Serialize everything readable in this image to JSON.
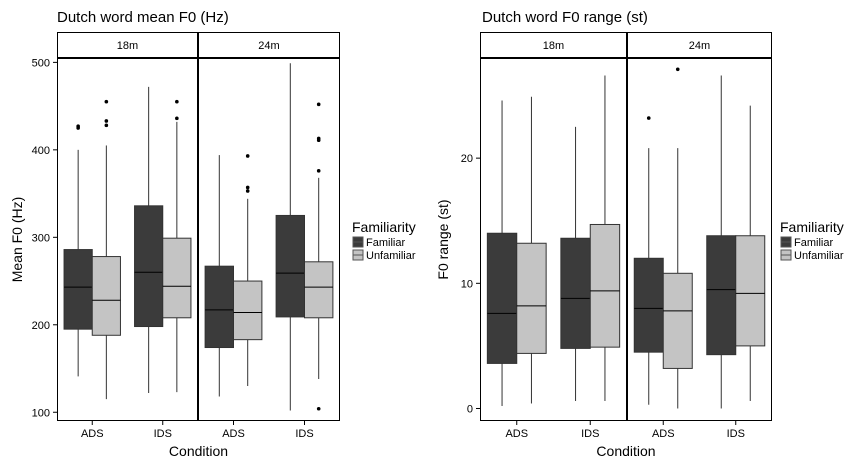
{
  "chart_data": [
    {
      "type": "boxplot",
      "title": "Dutch word mean F0 (Hz)",
      "xlabel": "Condition",
      "ylabel": "Mean F0 (Hz)",
      "ylim": [
        90,
        505
      ],
      "yticks": [
        100,
        200,
        300,
        400,
        500
      ],
      "facets": [
        "18m",
        "24m"
      ],
      "categories": [
        "ADS",
        "IDS"
      ],
      "legend": {
        "title": "Familiarity",
        "entries": [
          "Familiar",
          "Unfamiliar"
        ],
        "placement": "right"
      },
      "colors": {
        "Familiar": "#3b3b3b",
        "Unfamiliar": "#c4c4c4"
      },
      "grid": false,
      "boxes": [
        {
          "facet": "18m",
          "condition": "ADS",
          "group": "Familiar",
          "whisker_low": 141,
          "q1": 195,
          "median": 243,
          "q3": 286,
          "whisker_high": 400,
          "outliers": [
            425,
            427
          ]
        },
        {
          "facet": "18m",
          "condition": "ADS",
          "group": "Unfamiliar",
          "whisker_low": 115,
          "q1": 188,
          "median": 228,
          "q3": 278,
          "whisker_high": 405,
          "outliers": [
            428,
            433,
            455
          ]
        },
        {
          "facet": "18m",
          "condition": "IDS",
          "group": "Familiar",
          "whisker_low": 122,
          "q1": 198,
          "median": 260,
          "q3": 336,
          "whisker_high": 472,
          "outliers": []
        },
        {
          "facet": "18m",
          "condition": "IDS",
          "group": "Unfamiliar",
          "whisker_low": 123,
          "q1": 208,
          "median": 244,
          "q3": 299,
          "whisker_high": 432,
          "outliers": [
            436,
            455
          ]
        },
        {
          "facet": "24m",
          "condition": "ADS",
          "group": "Familiar",
          "whisker_low": 118,
          "q1": 174,
          "median": 217,
          "q3": 267,
          "whisker_high": 394,
          "outliers": []
        },
        {
          "facet": "24m",
          "condition": "ADS",
          "group": "Unfamiliar",
          "whisker_low": 130,
          "q1": 183,
          "median": 214,
          "q3": 250,
          "whisker_high": 344,
          "outliers": [
            353,
            357,
            393
          ]
        },
        {
          "facet": "24m",
          "condition": "IDS",
          "group": "Familiar",
          "whisker_low": 102,
          "q1": 209,
          "median": 259,
          "q3": 325,
          "whisker_high": 499,
          "outliers": []
        },
        {
          "facet": "24m",
          "condition": "IDS",
          "group": "Unfamiliar",
          "whisker_low": 138,
          "q1": 208,
          "median": 243,
          "q3": 272,
          "whisker_high": 368,
          "outliers": [
            104,
            376,
            411,
            413,
            452
          ]
        }
      ]
    },
    {
      "type": "boxplot",
      "title": "Dutch word F0 range (st)",
      "xlabel": "Condition",
      "ylabel": "F0 range (st)",
      "ylim": [
        -1,
        28
      ],
      "yticks": [
        0,
        10,
        20
      ],
      "facets": [
        "18m",
        "24m"
      ],
      "categories": [
        "ADS",
        "IDS"
      ],
      "legend": {
        "title": "Familiarity",
        "entries": [
          "Familiar",
          "Unfamiliar"
        ],
        "placement": "right"
      },
      "colors": {
        "Familiar": "#3b3b3b",
        "Unfamiliar": "#c4c4c4"
      },
      "grid": false,
      "boxes": [
        {
          "facet": "18m",
          "condition": "ADS",
          "group": "Familiar",
          "whisker_low": 0.2,
          "q1": 3.6,
          "median": 7.6,
          "q3": 14.0,
          "whisker_high": 24.6,
          "outliers": []
        },
        {
          "facet": "18m",
          "condition": "ADS",
          "group": "Unfamiliar",
          "whisker_low": 0.4,
          "q1": 4.4,
          "median": 8.2,
          "q3": 13.2,
          "whisker_high": 24.9,
          "outliers": []
        },
        {
          "facet": "18m",
          "condition": "IDS",
          "group": "Familiar",
          "whisker_low": 0.6,
          "q1": 4.8,
          "median": 8.8,
          "q3": 13.6,
          "whisker_high": 22.5,
          "outliers": []
        },
        {
          "facet": "18m",
          "condition": "IDS",
          "group": "Unfamiliar",
          "whisker_low": 0.6,
          "q1": 4.9,
          "median": 9.4,
          "q3": 14.7,
          "whisker_high": 26.6,
          "outliers": []
        },
        {
          "facet": "24m",
          "condition": "ADS",
          "group": "Familiar",
          "whisker_low": 0.3,
          "q1": 4.5,
          "median": 8.0,
          "q3": 12.0,
          "whisker_high": 20.8,
          "outliers": [
            23.2
          ]
        },
        {
          "facet": "24m",
          "condition": "ADS",
          "group": "Unfamiliar",
          "whisker_low": 0.0,
          "q1": 3.2,
          "median": 7.8,
          "q3": 10.8,
          "whisker_high": 20.8,
          "outliers": [
            27.1
          ]
        },
        {
          "facet": "24m",
          "condition": "IDS",
          "group": "Familiar",
          "whisker_low": 0.0,
          "q1": 4.3,
          "median": 9.5,
          "q3": 13.8,
          "whisker_high": 26.6,
          "outliers": []
        },
        {
          "facet": "24m",
          "condition": "IDS",
          "group": "Unfamiliar",
          "whisker_low": 0.6,
          "q1": 5.0,
          "median": 9.2,
          "q3": 13.8,
          "whisker_high": 24.2,
          "outliers": []
        }
      ]
    }
  ]
}
